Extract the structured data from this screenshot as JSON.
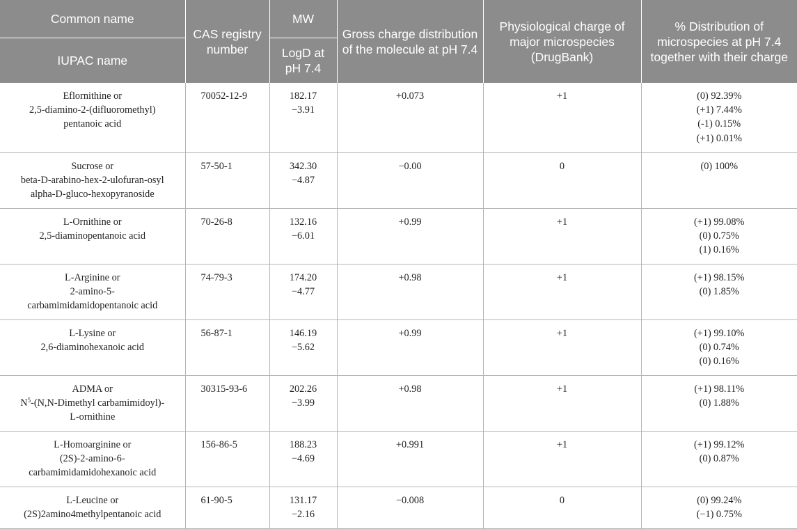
{
  "header": {
    "common_name": "Common name",
    "iupac_name": "IUPAC name",
    "cas": "CAS registry number",
    "mw": "MW",
    "logd": "LogD at pH 7.4",
    "gross": "Gross charge distribution of the molecule at pH 7.4",
    "phys": "Physiological charge of major microspecies (DrugBank)",
    "dist": "% Distribution of microspecies at pH 7.4 together with their charge"
  },
  "rows": [
    {
      "name_lines": [
        "Eflornithine or",
        "2,5-diamino-2-(difluoromethyl)",
        "pentanoic acid"
      ],
      "cas": "70052-12-9",
      "mw": "182.17",
      "logd": "−3.91",
      "gross": "+0.073",
      "phys": "+1",
      "dist": [
        "(0) 92.39%",
        "(+1) 7.44%",
        "(-1) 0.15%",
        "(+1) 0.01%"
      ]
    },
    {
      "name_lines": [
        "Sucrose or",
        "beta-D-arabino-hex-2-ulofuran-osyl",
        "alpha-D-gluco-hexopyranoside"
      ],
      "cas": "57-50-1",
      "mw": "342.30",
      "logd": "−4.87",
      "gross": "−0.00",
      "phys": "0",
      "dist": [
        "(0) 100%"
      ]
    },
    {
      "name_lines": [
        "L-Ornithine or",
        "2,5-diaminopentanoic acid"
      ],
      "cas": "70-26-8",
      "mw": "132.16",
      "logd": "−6.01",
      "gross": "+0.99",
      "phys": "+1",
      "dist": [
        "(+1) 99.08%",
        "(0) 0.75%",
        "(1) 0.16%"
      ]
    },
    {
      "name_lines": [
        "L-Arginine or",
        "2-amino-5-",
        "carbamimidamidopentanoic acid"
      ],
      "cas": "74-79-3",
      "mw": "174.20",
      "logd": "−4.77",
      "gross": "+0.98",
      "phys": "+1",
      "dist": [
        "(+1) 98.15%",
        "(0) 1.85%"
      ]
    },
    {
      "name_lines": [
        "L-Lysine or",
        "2,6-diaminohexanoic acid"
      ],
      "cas": "56-87-1",
      "mw": "146.19",
      "logd": "−5.62",
      "gross": "+0.99",
      "phys": "+1",
      "dist": [
        "(+1) 99.10%",
        "(0) 0.74%",
        "(0) 0.16%"
      ]
    },
    {
      "name_lines": [
        "ADMA or",
        "N5-(N,N-Dimethyl carbamimidoyl)-",
        "L-ornithine"
      ],
      "cas": "30315-93-6",
      "mw": "202.26",
      "logd": "−3.99",
      "gross": "+0.98",
      "phys": "+1",
      "dist": [
        "(+1) 98.11%",
        "(0) 1.88%"
      ]
    },
    {
      "name_lines": [
        "L-Homoarginine or",
        "(2S)-2-amino-6-",
        "carbamimidamidohexanoic acid"
      ],
      "cas": "156-86-5",
      "mw": "188.23",
      "logd": "−4.69",
      "gross": "+0.991",
      "phys": "+1",
      "dist": [
        "(+1) 99.12%",
        "(0) 0.87%"
      ]
    },
    {
      "name_lines": [
        "L-Leucine or",
        "(2S)2amino4methylpentanoic acid"
      ],
      "cas": "61-90-5",
      "mw": "131.17",
      "logd": "−2.16",
      "gross": "−0.008",
      "phys": "0",
      "dist": [
        "(0) 99.24%",
        "(−1) 0.75%"
      ]
    }
  ]
}
